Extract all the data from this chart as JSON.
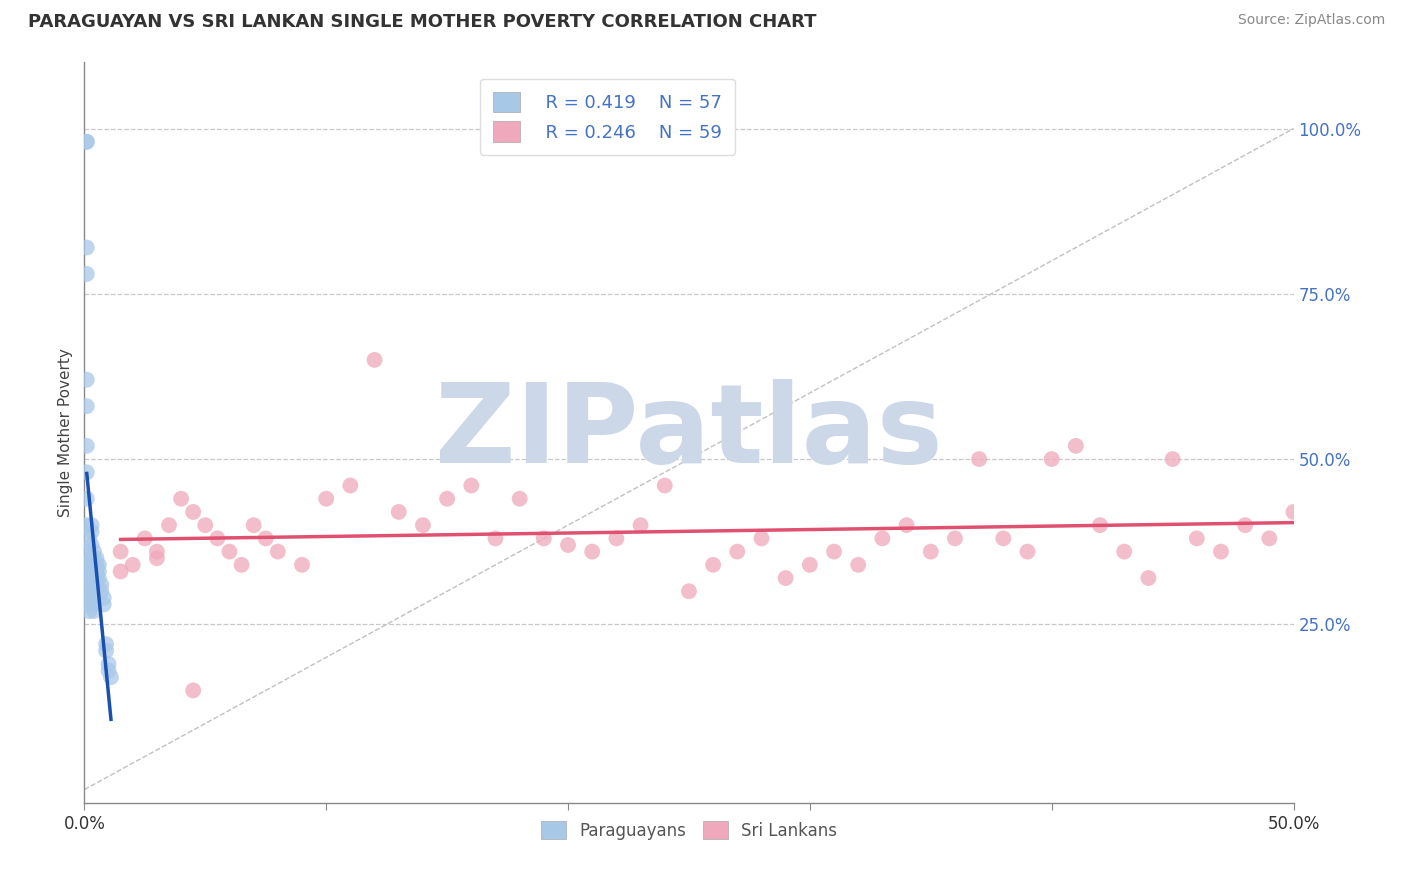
{
  "title": "PARAGUAYAN VS SRI LANKAN SINGLE MOTHER POVERTY CORRELATION CHART",
  "source_text": "Source: ZipAtlas.com",
  "ylabel": "Single Mother Poverty",
  "xlim": [
    0.0,
    0.5
  ],
  "ylim": [
    -0.02,
    1.1
  ],
  "background_color": "#ffffff",
  "grid_color": "#c8c8c8",
  "watermark": "ZIPatlas",
  "watermark_color": "#ccd8e8",
  "legend_R1": "R = 0.419",
  "legend_N1": "N = 57",
  "legend_R2": "R = 0.246",
  "legend_N2": "N = 59",
  "legend_label1": "Paraguayans",
  "legend_label2": "Sri Lankans",
  "dot_color1": "#a8c8e8",
  "dot_color2": "#f0a8bc",
  "line_color1": "#1a50b0",
  "line_color2": "#e05070",
  "diag_line_color": "#c0c0c0",
  "tick_label_color": "#4472c4",
  "par_x": [
    0.001,
    0.001,
    0.001,
    0.001,
    0.001,
    0.001,
    0.001,
    0.001,
    0.001,
    0.001,
    0.002,
    0.002,
    0.002,
    0.002,
    0.002,
    0.002,
    0.002,
    0.002,
    0.002,
    0.002,
    0.003,
    0.003,
    0.003,
    0.003,
    0.003,
    0.003,
    0.003,
    0.003,
    0.003,
    0.003,
    0.004,
    0.004,
    0.004,
    0.004,
    0.004,
    0.004,
    0.004,
    0.004,
    0.004,
    0.004,
    0.005,
    0.005,
    0.005,
    0.005,
    0.005,
    0.006,
    0.006,
    0.006,
    0.007,
    0.007,
    0.008,
    0.008,
    0.009,
    0.009,
    0.01,
    0.01,
    0.011
  ],
  "par_y": [
    0.98,
    0.98,
    0.82,
    0.78,
    0.62,
    0.58,
    0.52,
    0.48,
    0.44,
    0.4,
    0.38,
    0.36,
    0.34,
    0.33,
    0.32,
    0.31,
    0.3,
    0.29,
    0.28,
    0.27,
    0.4,
    0.39,
    0.37,
    0.35,
    0.34,
    0.33,
    0.32,
    0.31,
    0.3,
    0.29,
    0.36,
    0.35,
    0.34,
    0.33,
    0.32,
    0.31,
    0.3,
    0.29,
    0.28,
    0.27,
    0.35,
    0.34,
    0.33,
    0.32,
    0.31,
    0.34,
    0.33,
    0.32,
    0.31,
    0.3,
    0.29,
    0.28,
    0.22,
    0.21,
    0.19,
    0.18,
    0.17
  ],
  "slk_x": [
    0.015,
    0.02,
    0.025,
    0.03,
    0.035,
    0.04,
    0.045,
    0.05,
    0.055,
    0.06,
    0.065,
    0.07,
    0.075,
    0.08,
    0.09,
    0.1,
    0.11,
    0.12,
    0.13,
    0.14,
    0.15,
    0.16,
    0.17,
    0.18,
    0.19,
    0.2,
    0.21,
    0.22,
    0.23,
    0.24,
    0.25,
    0.26,
    0.27,
    0.28,
    0.29,
    0.3,
    0.31,
    0.32,
    0.33,
    0.34,
    0.35,
    0.36,
    0.37,
    0.38,
    0.39,
    0.4,
    0.41,
    0.42,
    0.43,
    0.44,
    0.45,
    0.46,
    0.47,
    0.48,
    0.49,
    0.5,
    0.015,
    0.03,
    0.045
  ],
  "slk_y": [
    0.36,
    0.34,
    0.38,
    0.36,
    0.4,
    0.44,
    0.42,
    0.4,
    0.38,
    0.36,
    0.34,
    0.4,
    0.38,
    0.36,
    0.34,
    0.44,
    0.46,
    0.65,
    0.42,
    0.4,
    0.44,
    0.46,
    0.38,
    0.44,
    0.38,
    0.37,
    0.36,
    0.38,
    0.4,
    0.46,
    0.3,
    0.34,
    0.36,
    0.38,
    0.32,
    0.34,
    0.36,
    0.34,
    0.38,
    0.4,
    0.36,
    0.38,
    0.5,
    0.38,
    0.36,
    0.5,
    0.52,
    0.4,
    0.36,
    0.32,
    0.5,
    0.38,
    0.36,
    0.4,
    0.38,
    0.42,
    0.33,
    0.35,
    0.15
  ]
}
